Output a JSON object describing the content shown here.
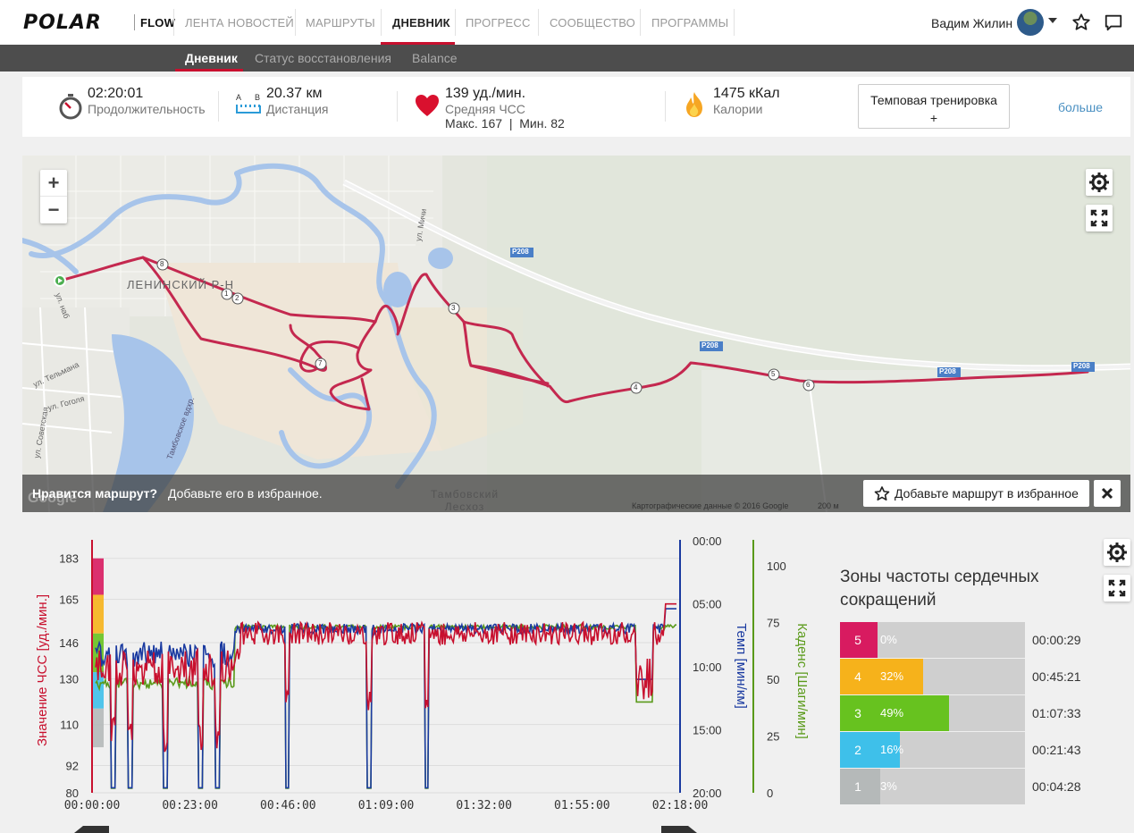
{
  "brand": "POLAR",
  "nav": {
    "flow": "FLOW",
    "items": [
      "ЛЕНТА НОВОСТЕЙ",
      "МАРШРУТЫ",
      "ДНЕВНИК",
      "ПРОГРЕСС",
      "СООБЩЕСТВО",
      "ПРОГРАММЫ"
    ],
    "active": "ДНЕВНИК",
    "user_name": "Вадим Жилин"
  },
  "subnav": {
    "items": [
      "Дневник",
      "Статус восстановления",
      "Balance"
    ],
    "active": "Дневник"
  },
  "summary": {
    "duration": {
      "value": "02:20:01",
      "label": "Продолжительность"
    },
    "distance": {
      "value": "20.37 км",
      "label": "Дистанция",
      "a": "A",
      "b": "B"
    },
    "hr": {
      "value": "139 уд./мин.",
      "label": "Средняя ЧСС",
      "max_label": "Макс. 167",
      "sep": "|",
      "min_label": "Мин. 82"
    },
    "calories": {
      "value": "1475 кКал",
      "label": "Калории"
    },
    "sport_button": {
      "line1": "Темповая тренировка",
      "line2": "+"
    },
    "more": "больше"
  },
  "map": {
    "zoom_in": "+",
    "zoom_out": "−",
    "banner_question": "Нравится маршрут?",
    "banner_text": "Добавьте его в избранное.",
    "fav_button": "Добавьте маршрут в избранное",
    "close": "✕",
    "copyright": "Картографические данные © 2016 Google",
    "scale": "200 м",
    "district_label": "ЛЕНИНСКИЙ Р-Н",
    "forest_label_1": "Тамбовский",
    "forest_label_2": "Лесхоз",
    "road_labels": [
      "P208",
      "P208",
      "P208",
      "P208"
    ],
    "street_labels": [
      "ул. Мичи",
      "ул. Тельмана",
      "ул. Гоголя",
      "ул. Советская",
      "ул. наб",
      "Тамбовское вдхр."
    ],
    "markers": [
      "1",
      "2",
      "3",
      "4",
      "5",
      "6",
      "7",
      "8"
    ],
    "watermark": "Google"
  },
  "chart_data": {
    "type": "line",
    "x_ticks": [
      "00:00:00",
      "00:23:00",
      "00:46:00",
      "01:09:00",
      "01:32:00",
      "01:55:00",
      "02:18:00"
    ],
    "y_left": {
      "label": "Значение ЧСС [уд./мин.]",
      "ticks": [
        "183",
        "165",
        "146",
        "130",
        "110",
        "92",
        "80"
      ]
    },
    "y_pace": {
      "label": "Темп [мин/км]",
      "ticks": [
        "00:00",
        "05:00",
        "10:00",
        "15:00",
        "20:00"
      ]
    },
    "y_cadence": {
      "label": "Каденс [Шаги/мин]",
      "ticks": [
        "100",
        "75",
        "50",
        "25",
        "0"
      ]
    },
    "series": [
      {
        "name": "ЧСС",
        "color": "#c8102e"
      },
      {
        "name": "Темп",
        "color": "#1a3aa0"
      },
      {
        "name": "Каденс",
        "color": "#5a9a1a"
      }
    ]
  },
  "zones": {
    "title": "Зоны частоты сердечных сокращений",
    "rows": [
      {
        "zone": "5",
        "pct": "0%",
        "fraction": 0.0,
        "time": "00:00:29",
        "color": "#d81b60"
      },
      {
        "zone": "4",
        "pct": "32%",
        "fraction": 0.32,
        "time": "00:45:21",
        "color": "#f6b21b"
      },
      {
        "zone": "3",
        "pct": "49%",
        "fraction": 0.49,
        "time": "01:07:33",
        "color": "#67c21f"
      },
      {
        "zone": "2",
        "pct": "16%",
        "fraction": 0.16,
        "time": "00:21:43",
        "color": "#3ec0ea"
      },
      {
        "zone": "1",
        "pct": "3%",
        "fraction": 0.03,
        "time": "00:04:28",
        "color": "#b5b9b9"
      }
    ]
  }
}
